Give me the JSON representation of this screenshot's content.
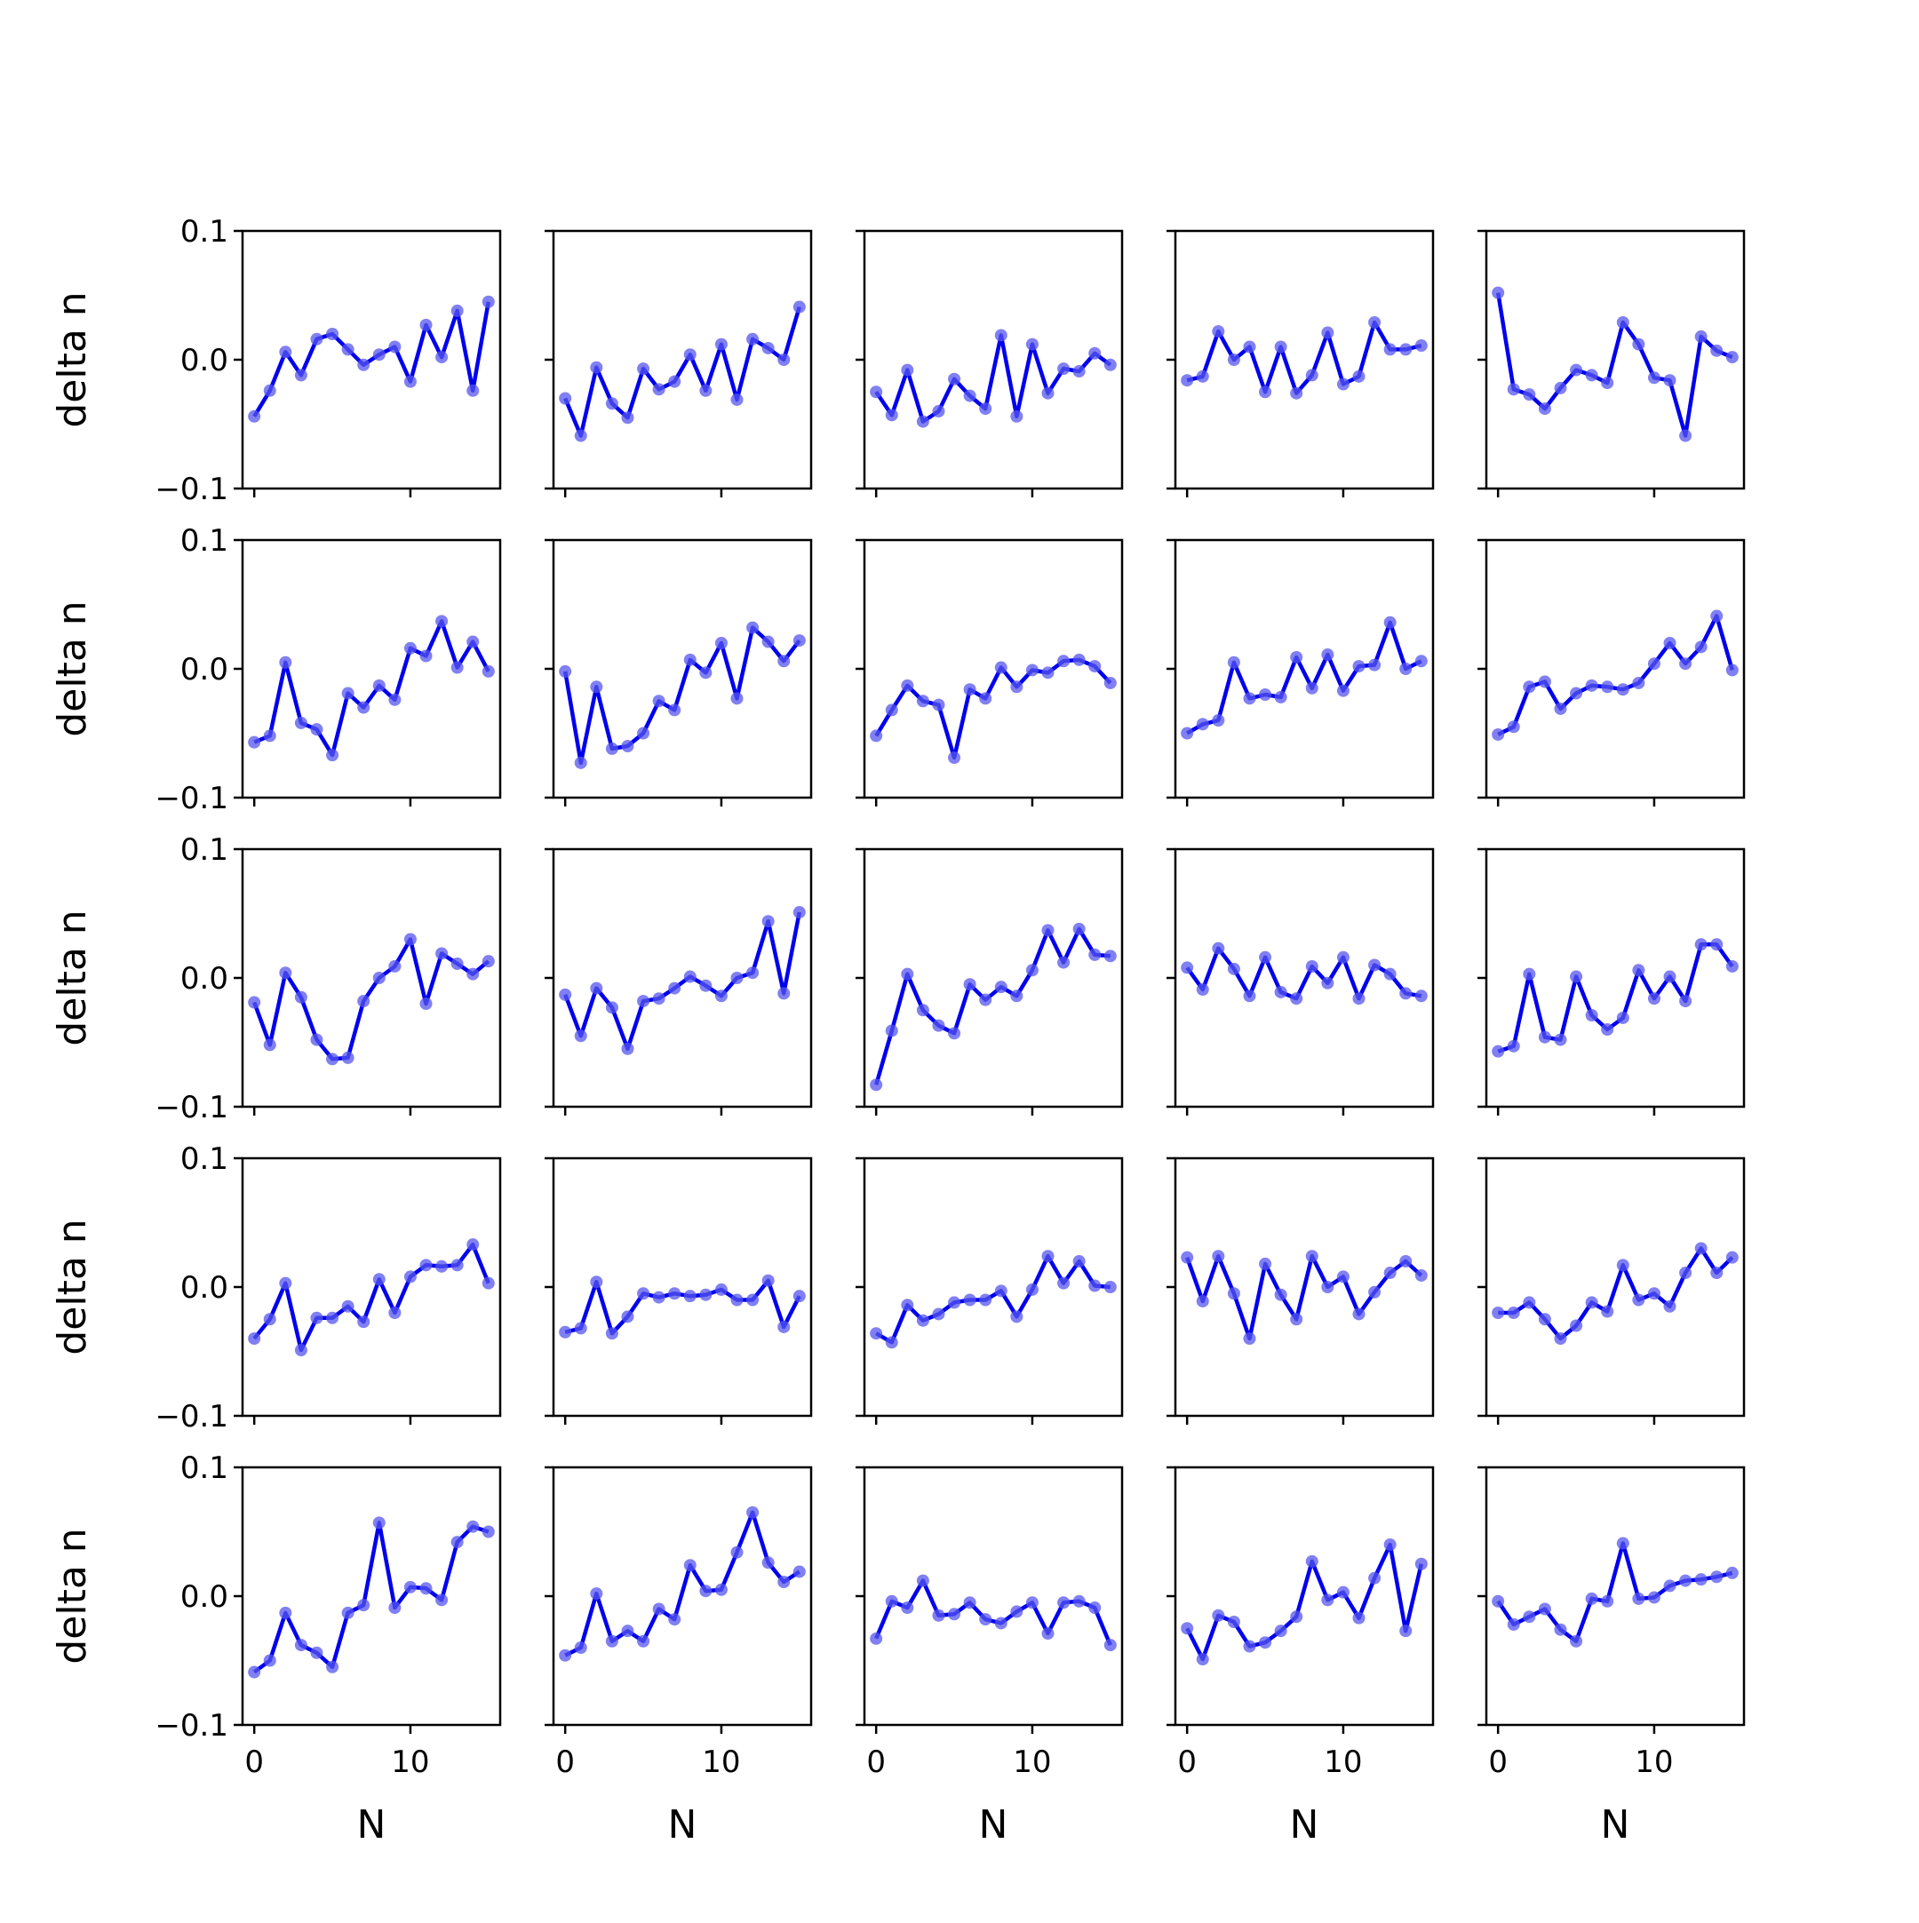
{
  "chart_data": {
    "type": "line",
    "layout": {
      "rows": 5,
      "cols": 5
    },
    "xlabel": "N",
    "ylabel": "delta n",
    "xlim": [
      -0.75,
      15.75
    ],
    "ylim": [
      -0.1,
      0.1
    ],
    "xticks": [
      0,
      10
    ],
    "xtick_labels": [
      "0",
      "10"
    ],
    "yticks": [
      -0.1,
      0.0,
      0.1
    ],
    "ytick_labels": [
      "−0.1",
      "0.0",
      "0.1"
    ],
    "grid": false,
    "legend": "none",
    "x": [
      0,
      1,
      2,
      3,
      4,
      5,
      6,
      7,
      8,
      9,
      10,
      11,
      12,
      13,
      14,
      15
    ],
    "colors": {
      "line": "#0000ee",
      "marker": "#5555ee"
    },
    "panels": [
      {
        "values": [
          -0.044,
          -0.024,
          0.006,
          -0.012,
          0.016,
          0.02,
          0.008,
          -0.004,
          0.004,
          0.01,
          -0.017,
          0.027,
          0.002,
          0.038,
          -0.024,
          0.045
        ]
      },
      {
        "values": [
          -0.03,
          -0.059,
          -0.006,
          -0.034,
          -0.045,
          -0.007,
          -0.023,
          -0.017,
          0.004,
          -0.024,
          0.012,
          -0.031,
          0.016,
          0.009,
          0.0,
          0.041
        ]
      },
      {
        "values": [
          -0.025,
          -0.043,
          -0.008,
          -0.048,
          -0.04,
          -0.015,
          -0.028,
          -0.038,
          0.019,
          -0.044,
          0.012,
          -0.026,
          -0.007,
          -0.009,
          0.005,
          -0.004
        ]
      },
      {
        "values": [
          -0.016,
          -0.013,
          0.022,
          0.0,
          0.01,
          -0.025,
          0.01,
          -0.026,
          -0.012,
          0.021,
          -0.019,
          -0.013,
          0.029,
          0.008,
          0.008,
          0.011
        ]
      },
      {
        "values": [
          0.052,
          -0.023,
          -0.027,
          -0.038,
          -0.022,
          -0.008,
          -0.012,
          -0.018,
          0.029,
          0.012,
          -0.014,
          -0.016,
          -0.059,
          0.018,
          0.007,
          0.002
        ]
      },
      {
        "values": [
          -0.057,
          -0.052,
          0.005,
          -0.042,
          -0.047,
          -0.067,
          -0.019,
          -0.03,
          -0.013,
          -0.024,
          0.016,
          0.01,
          0.037,
          0.001,
          0.021,
          -0.002
        ]
      },
      {
        "values": [
          -0.002,
          -0.073,
          -0.014,
          -0.062,
          -0.06,
          -0.05,
          -0.025,
          -0.032,
          0.007,
          -0.003,
          0.02,
          -0.023,
          0.032,
          0.021,
          0.006,
          0.022
        ]
      },
      {
        "values": [
          -0.052,
          -0.032,
          -0.013,
          -0.025,
          -0.028,
          -0.069,
          -0.016,
          -0.023,
          0.001,
          -0.014,
          -0.001,
          -0.003,
          0.006,
          0.007,
          0.002,
          -0.011
        ]
      },
      {
        "values": [
          -0.05,
          -0.043,
          -0.04,
          0.005,
          -0.023,
          -0.02,
          -0.022,
          0.009,
          -0.015,
          0.011,
          -0.017,
          0.002,
          0.003,
          0.036,
          0.0,
          0.006
        ]
      },
      {
        "values": [
          -0.051,
          -0.045,
          -0.014,
          -0.01,
          -0.031,
          -0.019,
          -0.013,
          -0.014,
          -0.016,
          -0.011,
          0.004,
          0.02,
          0.004,
          0.017,
          0.041,
          -0.001
        ]
      },
      {
        "values": [
          -0.019,
          -0.052,
          0.004,
          -0.015,
          -0.048,
          -0.063,
          -0.062,
          -0.018,
          0.0,
          0.009,
          0.03,
          -0.02,
          0.019,
          0.011,
          0.003,
          0.013
        ]
      },
      {
        "values": [
          -0.013,
          -0.045,
          -0.008,
          -0.023,
          -0.055,
          -0.018,
          -0.016,
          -0.008,
          0.001,
          -0.006,
          -0.014,
          0.0,
          0.004,
          0.044,
          -0.012,
          0.051
        ]
      },
      {
        "values": [
          -0.083,
          -0.041,
          0.003,
          -0.025,
          -0.037,
          -0.043,
          -0.005,
          -0.017,
          -0.007,
          -0.014,
          0.006,
          0.037,
          0.012,
          0.038,
          0.018,
          0.017
        ]
      },
      {
        "values": [
          0.008,
          -0.009,
          0.023,
          0.007,
          -0.014,
          0.016,
          -0.011,
          -0.016,
          0.009,
          -0.004,
          0.016,
          -0.016,
          0.01,
          0.003,
          -0.012,
          -0.014
        ]
      },
      {
        "values": [
          -0.057,
          -0.053,
          0.003,
          -0.046,
          -0.048,
          0.001,
          -0.029,
          -0.04,
          -0.031,
          0.006,
          -0.016,
          0.001,
          -0.018,
          0.026,
          0.026,
          0.009
        ]
      },
      {
        "values": [
          -0.04,
          -0.025,
          0.003,
          -0.049,
          -0.024,
          -0.024,
          -0.015,
          -0.027,
          0.006,
          -0.02,
          0.008,
          0.017,
          0.016,
          0.017,
          0.033,
          0.003
        ]
      },
      {
        "values": [
          -0.035,
          -0.032,
          0.004,
          -0.036,
          -0.023,
          -0.005,
          -0.008,
          -0.005,
          -0.007,
          -0.006,
          -0.002,
          -0.01,
          -0.01,
          0.005,
          -0.031,
          -0.007
        ]
      },
      {
        "values": [
          -0.036,
          -0.043,
          -0.014,
          -0.026,
          -0.021,
          -0.012,
          -0.01,
          -0.01,
          -0.003,
          -0.023,
          -0.002,
          0.024,
          0.003,
          0.02,
          0.001,
          0.0
        ]
      },
      {
        "values": [
          0.023,
          -0.011,
          0.024,
          -0.005,
          -0.04,
          0.018,
          -0.006,
          -0.025,
          0.024,
          0.0,
          0.008,
          -0.021,
          -0.004,
          0.011,
          0.02,
          0.009
        ]
      },
      {
        "values": [
          -0.02,
          -0.02,
          -0.012,
          -0.025,
          -0.04,
          -0.03,
          -0.012,
          -0.019,
          0.017,
          -0.01,
          -0.005,
          -0.015,
          0.011,
          0.03,
          0.011,
          0.023
        ]
      },
      {
        "values": [
          -0.059,
          -0.05,
          -0.013,
          -0.038,
          -0.044,
          -0.055,
          -0.013,
          -0.007,
          0.057,
          -0.009,
          0.007,
          0.006,
          -0.003,
          0.042,
          0.054,
          0.05
        ]
      },
      {
        "values": [
          -0.046,
          -0.04,
          0.002,
          -0.035,
          -0.027,
          -0.035,
          -0.01,
          -0.018,
          0.024,
          0.004,
          0.005,
          0.034,
          0.065,
          0.026,
          0.011,
          0.019
        ]
      },
      {
        "values": [
          -0.033,
          -0.004,
          -0.009,
          0.012,
          -0.015,
          -0.014,
          -0.005,
          -0.018,
          -0.021,
          -0.012,
          -0.005,
          -0.029,
          -0.005,
          -0.004,
          -0.009,
          -0.038
        ]
      },
      {
        "values": [
          -0.025,
          -0.049,
          -0.015,
          -0.02,
          -0.039,
          -0.036,
          -0.027,
          -0.016,
          0.027,
          -0.003,
          0.003,
          -0.017,
          0.014,
          0.04,
          -0.027,
          0.025
        ]
      },
      {
        "values": [
          -0.004,
          -0.022,
          -0.016,
          -0.01,
          -0.026,
          -0.035,
          -0.002,
          -0.004,
          0.041,
          -0.002,
          -0.001,
          0.008,
          0.012,
          0.013,
          0.015,
          0.018
        ]
      }
    ]
  }
}
